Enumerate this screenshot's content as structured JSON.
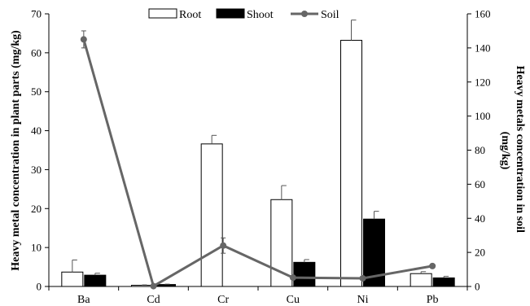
{
  "chart_data": {
    "type": "bar",
    "categories": [
      "Ba",
      "Cd",
      "Cr",
      "Cu",
      "Ni",
      "Pb"
    ],
    "series": [
      {
        "name": "Root",
        "axis": "left",
        "kind": "bar",
        "values": [
          3.7,
          0.3,
          36.6,
          22.3,
          63.2,
          3.3
        ],
        "errors": [
          3.1,
          0.1,
          2.2,
          3.6,
          5.2,
          0.5
        ],
        "color": "#ffffff",
        "stroke": "#000000"
      },
      {
        "name": "Shoot",
        "axis": "left",
        "kind": "bar",
        "values": [
          2.9,
          0.5,
          0.0,
          6.2,
          17.3,
          2.2
        ],
        "errors": [
          0.5,
          0.1,
          0.0,
          0.7,
          2.0,
          0.4
        ],
        "color": "#000000",
        "stroke": "#000000"
      },
      {
        "name": "Soil",
        "axis": "right",
        "kind": "line",
        "values": [
          145.0,
          0.2,
          24.0,
          5.2,
          4.8,
          12.0
        ],
        "errors": [
          5.0,
          0.0,
          4.5,
          0.0,
          0.0,
          0.0
        ],
        "color": "#666666"
      }
    ],
    "ylabel": "Heavy metal concentration in plant parts (mg/kg)",
    "y2label": "Heavy metals concentration in soil (mg/kg)",
    "ylim": [
      0,
      70
    ],
    "y2lim": [
      0,
      160
    ],
    "yticks": [
      "0",
      "10",
      "20",
      "30",
      "40",
      "50",
      "60",
      "70"
    ],
    "y2ticks": [
      "0",
      "20",
      "40",
      "60",
      "80",
      "100",
      "120",
      "140",
      "160"
    ],
    "legend_position": "top-center",
    "grid": false
  }
}
